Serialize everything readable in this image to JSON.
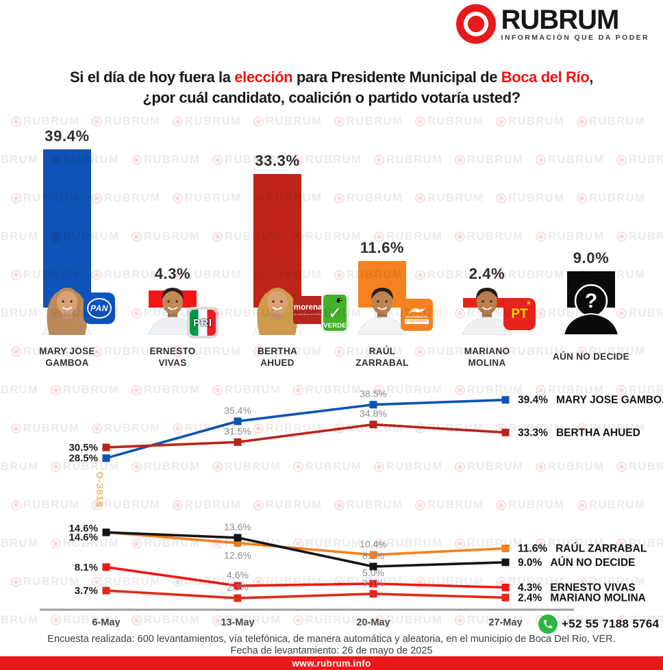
{
  "header": {
    "brand": "RUBRUM",
    "tagline": "INFORMACIÓN QUE DA PODER"
  },
  "title": {
    "line1_parts": [
      {
        "text": "Si el día de hoy fuera la ",
        "red": false
      },
      {
        "text": "elección",
        "red": true
      },
      {
        "text": " para Presidente Municipal de ",
        "red": false
      },
      {
        "text": "Boca del Río",
        "red": true
      },
      {
        "text": ",",
        "red": false
      }
    ],
    "line2": "¿por cuál candidato, coalición o partido votaría usted?"
  },
  "watermark": {
    "brand": "RUBRUM",
    "code": "O-3818"
  },
  "parties": {
    "pan": {
      "label": "PAN"
    },
    "pri": {
      "label": "PRI"
    },
    "morena": {
      "label": "morena",
      "sublabel": "la esperanza de México"
    },
    "verde": {
      "label": "VERDE"
    },
    "mc": {
      "label_line1": "MOVIMIENTO",
      "label_line2": "CIUDADANO"
    },
    "pt": {
      "label": "PT"
    }
  },
  "chart_data": [
    {
      "type": "bar",
      "title": "",
      "categories": [
        [
          "MARY JOSE",
          "GAMBOA"
        ],
        [
          "ERNESTO",
          "VIVAS"
        ],
        [
          "BERTHA",
          "AHUED"
        ],
        [
          "RAÚL",
          "ZARRABAL"
        ],
        [
          "MARIANO",
          "MOLINA"
        ],
        [
          "AÚN NO DECIDE"
        ]
      ],
      "values": [
        39.4,
        4.3,
        33.3,
        11.6,
        2.4,
        9.0
      ],
      "value_labels": [
        "39.4%",
        "4.3%",
        "33.3%",
        "11.6%",
        "2.4%",
        "9.0%"
      ],
      "colors": [
        "#0e53b5",
        "#f31616",
        "#be2418",
        "#f5821e",
        "#ee2015",
        "#0a0a0a"
      ],
      "party_logos": [
        [
          "pan"
        ],
        [
          "pri"
        ],
        [
          "morena",
          "verde"
        ],
        [
          "mc"
        ],
        [
          "pt"
        ],
        []
      ],
      "avatars": [
        "woman-a",
        "man-a",
        "woman-b",
        "man-b",
        "man-c",
        "unknown-silhouette"
      ],
      "unknown_mark": "?",
      "ylim": [
        0,
        42
      ],
      "grid": false
    },
    {
      "type": "line",
      "x": [
        "6-May",
        "13-May",
        "20-May",
        "27-May"
      ],
      "series": [
        {
          "name": "MARY JOSE GAMBOA",
          "color": "#0e53b5",
          "values": [
            28.5,
            35.4,
            38.5,
            39.4
          ]
        },
        {
          "name": "BERTHA AHUED",
          "color": "#be2418",
          "values": [
            30.5,
            31.5,
            34.8,
            33.3
          ]
        },
        {
          "name": "RAÚL ZARRABAL",
          "color": "#f5821e",
          "values": [
            14.6,
            12.6,
            10.4,
            11.6
          ]
        },
        {
          "name": "AÚN NO DECIDE",
          "color": "#141414",
          "values": [
            14.6,
            13.6,
            8.2,
            9.0
          ]
        },
        {
          "name": "ERNESTO VIVAS",
          "color": "#f31616",
          "values": [
            8.1,
            4.6,
            5.0,
            4.3
          ]
        },
        {
          "name": "MARIANO MOLINA",
          "color": "#df2a1c",
          "values": [
            3.7,
            2.3,
            3.1,
            2.4
          ]
        }
      ],
      "ylim": [
        0,
        43
      ],
      "grid": false,
      "legend_position": "right-of-last-point",
      "marker": "square"
    }
  ],
  "contact": {
    "whatsapp": "+52 55 7188 5764"
  },
  "footer": {
    "line1": "Encuesta realizada: 600 levantamientos, vía telefónica, de manera automática y aleatoria, en el municipio de Boca Del Rio, VER.",
    "line2": "Fecha de levantamiento: 26 de mayo de 2025",
    "website": "www.rubrum.info"
  },
  "colors": {
    "accent_red": "#e8191c",
    "title_red": "#f31414",
    "axis_gray": "#9e9e9e",
    "whatsapp_green": "#2cb742"
  }
}
